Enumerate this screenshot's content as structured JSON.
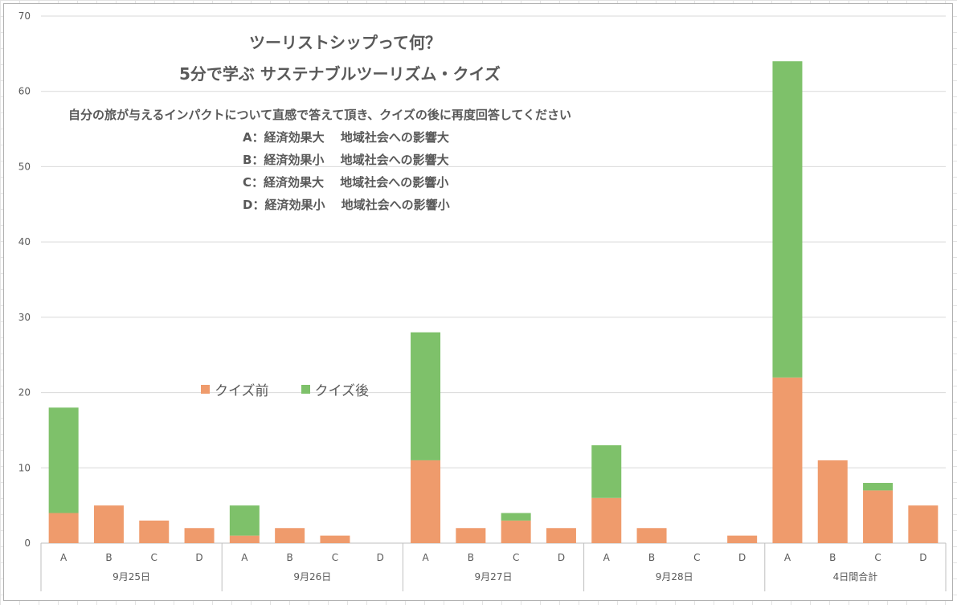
{
  "chart_data": {
    "type": "bar",
    "stacked": true,
    "title_lines": [
      "ツーリストシップって何？",
      "5分で学ぶ サステナブルツーリズム・クイズ"
    ],
    "subtitle_lines": [
      "自分の旅が与えるインパクトについて直感で答えて頂き、クイズの後に再度回答してください",
      "A：経済効果大　 地域社会への影響大",
      "B：経済効果小　 地域社会への影響大",
      "C：経済効果大　 地域社会への影響小",
      "D：経済効果小　 地域社会への影響小"
    ],
    "groups": [
      {
        "label": "9月25日",
        "categories": [
          "A",
          "B",
          "C",
          "D"
        ]
      },
      {
        "label": "9月26日",
        "categories": [
          "A",
          "B",
          "C",
          "D"
        ]
      },
      {
        "label": "9月27日",
        "categories": [
          "A",
          "B",
          "C",
          "D"
        ]
      },
      {
        "label": "9月28日",
        "categories": [
          "A",
          "B",
          "C",
          "D"
        ]
      },
      {
        "label": "4日間合計",
        "categories": [
          "A",
          "B",
          "C",
          "D"
        ]
      }
    ],
    "series": [
      {
        "name": "クイズ前",
        "color": "#ef9b6c",
        "values": [
          4,
          5,
          3,
          2,
          1,
          2,
          1,
          0,
          11,
          2,
          3,
          2,
          6,
          2,
          0,
          1,
          22,
          11,
          7,
          5
        ]
      },
      {
        "name": "クイズ後",
        "color": "#7ec16a",
        "values": [
          14,
          0,
          0,
          0,
          4,
          0,
          0,
          0,
          17,
          0,
          1,
          0,
          7,
          0,
          0,
          0,
          42,
          0,
          1,
          0
        ]
      }
    ],
    "ylim": [
      0,
      70
    ],
    "yticks": [
      0,
      10,
      20,
      30,
      40,
      50,
      60,
      70
    ],
    "grid": true,
    "legend_position": "middle-left"
  }
}
